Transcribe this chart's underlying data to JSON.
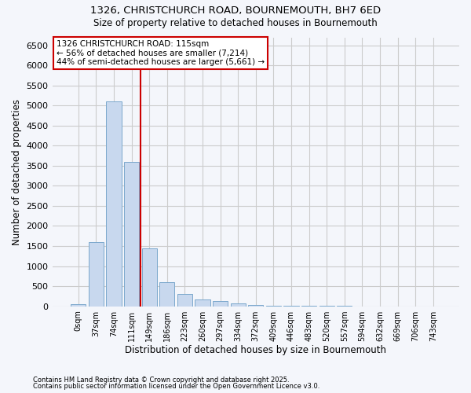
{
  "title_line1": "1326, CHRISTCHURCH ROAD, BOURNEMOUTH, BH7 6ED",
  "title_line2": "Size of property relative to detached houses in Bournemouth",
  "xlabel": "Distribution of detached houses by size in Bournemouth",
  "ylabel": "Number of detached properties",
  "categories": [
    "0sqm",
    "37sqm",
    "74sqm",
    "111sqm",
    "149sqm",
    "186sqm",
    "223sqm",
    "260sqm",
    "297sqm",
    "334sqm",
    "372sqm",
    "409sqm",
    "446sqm",
    "483sqm",
    "520sqm",
    "557sqm",
    "594sqm",
    "632sqm",
    "669sqm",
    "706sqm",
    "743sqm"
  ],
  "values": [
    55,
    1600,
    5100,
    3600,
    1450,
    600,
    300,
    175,
    120,
    75,
    35,
    20,
    10,
    5,
    3,
    2,
    1,
    1,
    1,
    0,
    0
  ],
  "bar_color": "#c8d8ee",
  "bar_edge_color": "#7ba8cc",
  "vline_x": 3.5,
  "vline_color": "#cc0000",
  "annotation_text": "1326 CHRISTCHURCH ROAD: 115sqm\n← 56% of detached houses are smaller (7,214)\n44% of semi-detached houses are larger (5,661) →",
  "annotation_box_color": "#ffffff",
  "annotation_box_edge_color": "#cc0000",
  "ylim": [
    0,
    6700
  ],
  "yticks": [
    0,
    500,
    1000,
    1500,
    2000,
    2500,
    3000,
    3500,
    4000,
    4500,
    5000,
    5500,
    6000,
    6500
  ],
  "footnote1": "Contains HM Land Registry data © Crown copyright and database right 2025.",
  "footnote2": "Contains public sector information licensed under the Open Government Licence v3.0.",
  "background_color": "#f4f6fb",
  "grid_color": "#cccccc"
}
